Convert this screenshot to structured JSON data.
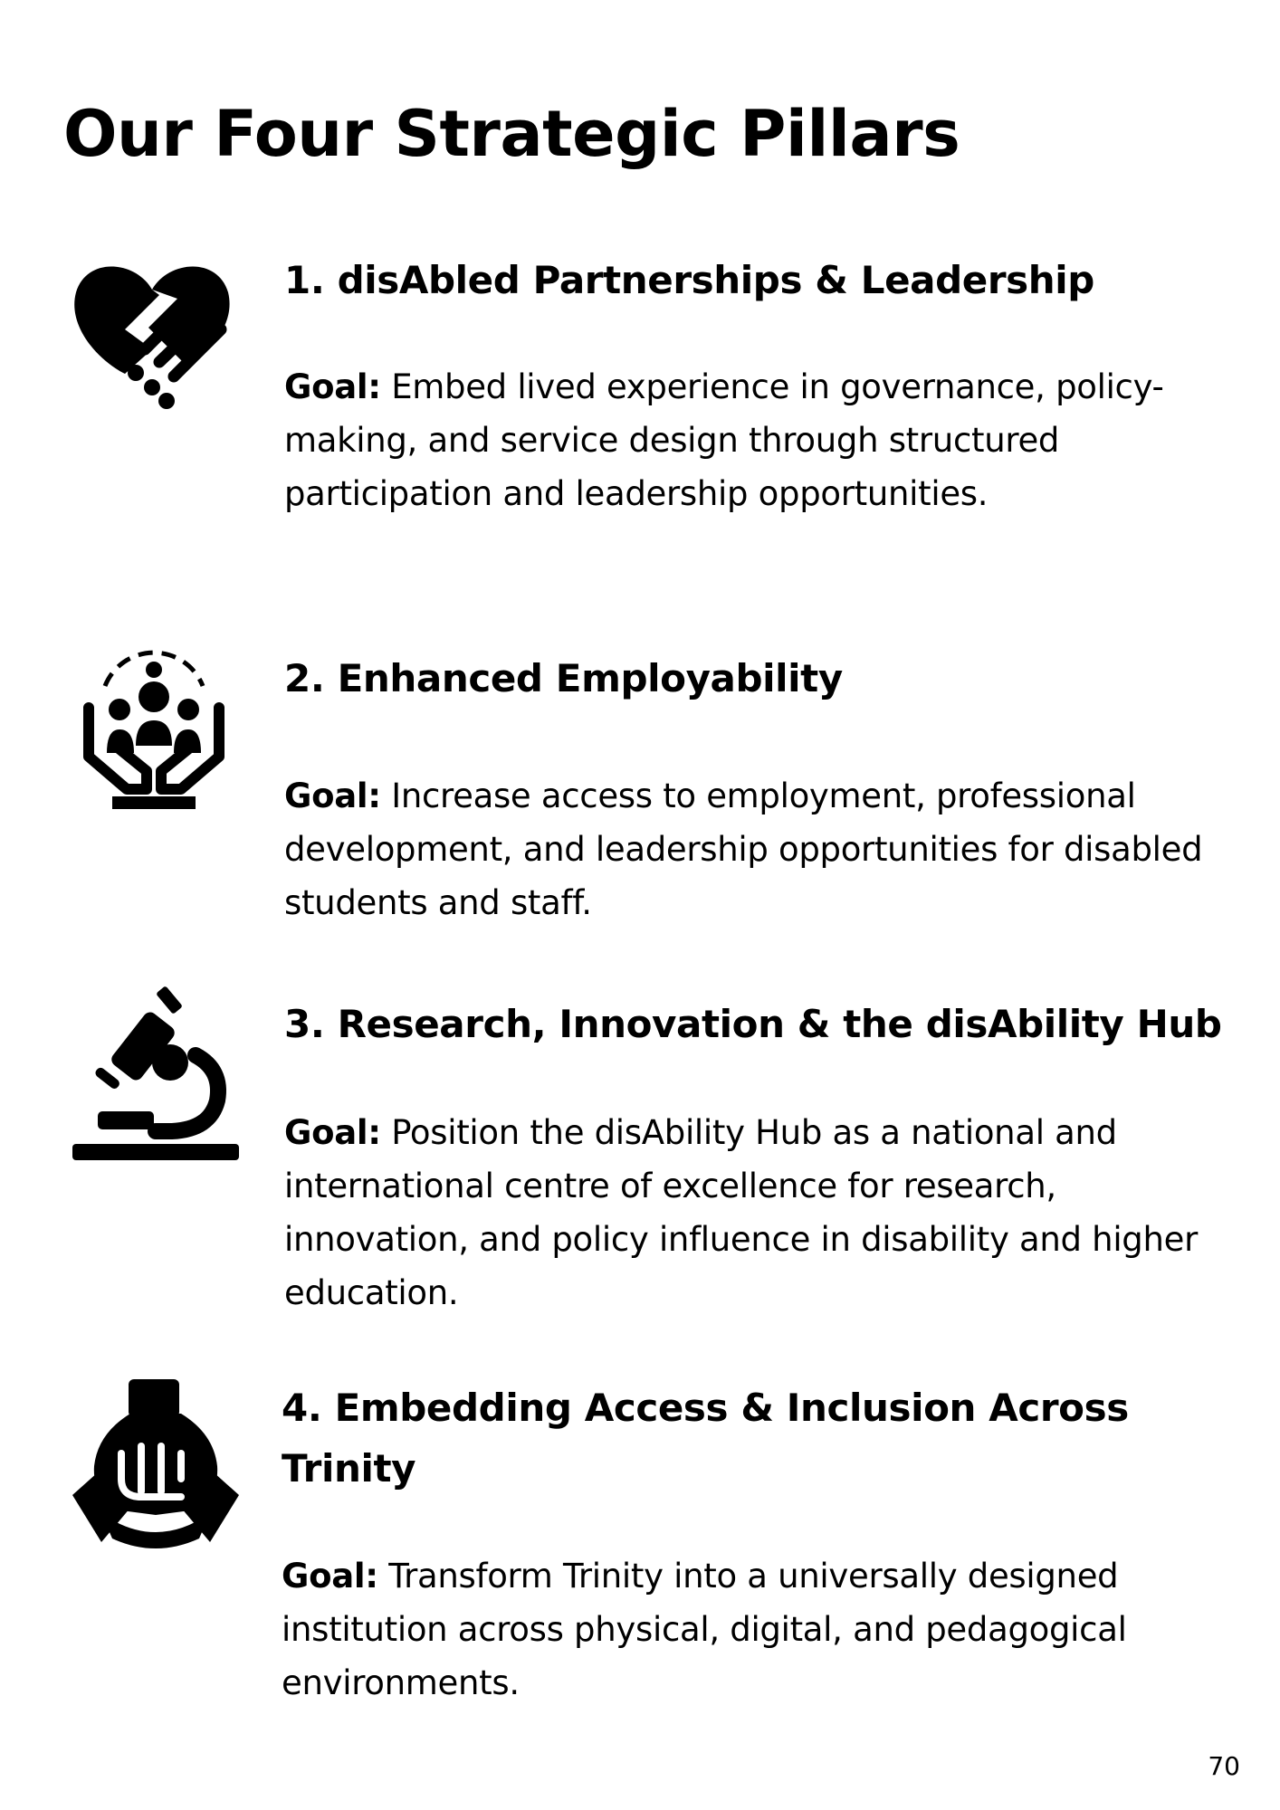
{
  "page": {
    "title": "Our Four Strategic Pillars",
    "page_number": "70"
  },
  "pillars": [
    {
      "heading": "1. disAbled Partnerships & Leadership",
      "goal_label": "Goal:",
      "goal_text": " Embed lived experience in governance, policy-making, and service design through structured participation and leadership opportunities.",
      "icon": "heart-handshake-icon"
    },
    {
      "heading": "2. Enhanced Employability",
      "goal_label": "Goal:",
      "goal_text": " Increase access to employment, professional development, and leadership opportunities for disabled students and staff.",
      "icon": "hands-supporting-people-icon"
    },
    {
      "heading": "3. Research, Innovation & the disAbility Hub",
      "goal_label": "Goal:",
      "goal_text": " Position the disAbility Hub as a national and international centre of excellence for research, innovation, and policy influence in disability and higher education.",
      "icon": "microscope-icon"
    },
    {
      "heading": "4. Embedding Access & Inclusion Across Trinity",
      "goal_label": "Goal:",
      "goal_text": " Transform Trinity into a universally designed institution across physical, digital, and pedagogical environments.",
      "icon": "stacked-hands-icon"
    }
  ]
}
